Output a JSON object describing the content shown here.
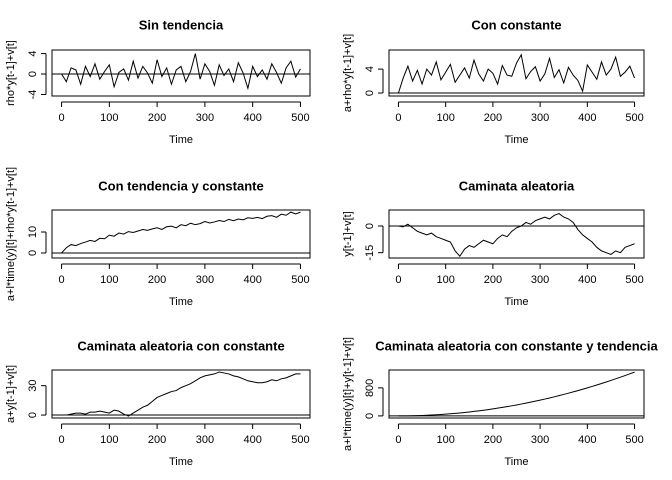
{
  "chart_data": [
    {
      "type": "line",
      "title": "Sin tendencia",
      "xlabel": "Time",
      "ylabel": "rho*y[t-1]+v[t]",
      "color": "#000000",
      "hline": 0,
      "xlim": [
        -20,
        520
      ],
      "ylim": [
        -4.3,
        4.7
      ],
      "xticks": [
        0,
        100,
        200,
        300,
        400,
        500
      ],
      "yticks": [
        -4,
        0,
        4
      ],
      "x": [
        0,
        10,
        20,
        30,
        40,
        50,
        60,
        70,
        80,
        90,
        100,
        110,
        120,
        130,
        140,
        150,
        160,
        170,
        180,
        190,
        200,
        210,
        220,
        230,
        240,
        250,
        260,
        270,
        280,
        290,
        300,
        310,
        320,
        330,
        340,
        350,
        360,
        370,
        380,
        390,
        400,
        410,
        420,
        430,
        440,
        450,
        460,
        470,
        480,
        490,
        500
      ],
      "values": [
        0,
        -1.5,
        1.2,
        0.8,
        -2,
        1.5,
        -0.5,
        2,
        -1,
        0.5,
        1.8,
        -2.5,
        0.3,
        1,
        -1.2,
        2.5,
        -0.8,
        1.5,
        0.2,
        -1.8,
        2.8,
        -0.5,
        1.2,
        -2,
        0.8,
        1.5,
        -1.5,
        0.5,
        4,
        -1,
        2,
        0.5,
        -2.2,
        1.8,
        -0.3,
        1,
        -1.5,
        2.2,
        0.2,
        -2.8,
        1.5,
        -0.5,
        0.8,
        -1,
        2,
        0.3,
        -1.8,
        1.2,
        2.5,
        -0.6,
        1
      ]
    },
    {
      "type": "line",
      "title": "Con constante",
      "xlabel": "Time",
      "ylabel": "a+rho*y[t-1]+v[t]",
      "color": "#000000",
      "hline": 0,
      "xlim": [
        -20,
        520
      ],
      "ylim": [
        -0.5,
        7.2
      ],
      "xticks": [
        0,
        100,
        200,
        300,
        400,
        500
      ],
      "yticks": [
        0,
        4
      ],
      "x": [
        0,
        10,
        20,
        30,
        40,
        50,
        60,
        70,
        80,
        90,
        100,
        110,
        120,
        130,
        140,
        150,
        160,
        170,
        180,
        190,
        200,
        210,
        220,
        230,
        240,
        250,
        260,
        270,
        280,
        290,
        300,
        310,
        320,
        330,
        340,
        350,
        360,
        370,
        380,
        390,
        400,
        410,
        420,
        430,
        440,
        450,
        460,
        470,
        480,
        490,
        500
      ],
      "values": [
        0,
        2.5,
        4.5,
        2,
        3.8,
        1.5,
        4,
        3,
        5.2,
        2.2,
        3.5,
        4.8,
        1.8,
        3,
        4.2,
        2.5,
        5.5,
        3.2,
        2,
        4,
        3.3,
        1.5,
        4.6,
        3,
        2.8,
        5,
        6.4,
        2.4,
        3.6,
        4.4,
        2,
        3.2,
        5.8,
        2.6,
        3.9,
        1.7,
        4.3,
        3,
        2.1,
        0.3,
        4.7,
        3.5,
        2.3,
        5.2,
        3,
        4,
        6,
        2.8,
        3.5,
        4.5,
        2.5
      ]
    },
    {
      "type": "line",
      "title": "Con tendencia y constante",
      "xlabel": "Time",
      "ylabel": "a+l*time(y)[t]+rho*y[t-1]+v[t]",
      "color": "#000000",
      "hline": 0,
      "xlim": [
        -20,
        520
      ],
      "ylim": [
        -2.4,
        20.5
      ],
      "xticks": [
        0,
        100,
        200,
        300,
        400,
        500
      ],
      "yticks": [
        0,
        10
      ],
      "x": [
        0,
        10,
        20,
        30,
        40,
        50,
        60,
        70,
        80,
        90,
        100,
        110,
        120,
        130,
        140,
        150,
        160,
        170,
        180,
        190,
        200,
        210,
        220,
        230,
        240,
        250,
        260,
        270,
        280,
        290,
        300,
        310,
        320,
        330,
        340,
        350,
        360,
        370,
        380,
        390,
        400,
        410,
        420,
        430,
        440,
        450,
        460,
        470,
        480,
        490,
        500
      ],
      "values": [
        0,
        2.5,
        4,
        3.5,
        4.5,
        5.2,
        6,
        5.5,
        7,
        6.8,
        8.5,
        8,
        9.5,
        9,
        10.2,
        9.8,
        10.5,
        11.2,
        10.8,
        11.5,
        12,
        11.2,
        12.5,
        12.8,
        12,
        13.5,
        13,
        14.2,
        13.5,
        14,
        15,
        14.3,
        14.8,
        15.5,
        15,
        16,
        15.4,
        16.2,
        15.8,
        16.8,
        16.5,
        17,
        16.4,
        17.5,
        17.8,
        17,
        18.5,
        18,
        19.5,
        18.6,
        19.5
      ]
    },
    {
      "type": "line",
      "title": "Caminata aleatoria",
      "xlabel": "Time",
      "ylabel": "y[t-1]+v[t]",
      "color": "#000000",
      "hline": 0,
      "xlim": [
        -20,
        520
      ],
      "ylim": [
        -18,
        9
      ],
      "xticks": [
        0,
        100,
        200,
        300,
        400,
        500
      ],
      "yticks": [
        -15,
        0
      ],
      "x": [
        0,
        10,
        20,
        30,
        40,
        50,
        60,
        70,
        80,
        90,
        100,
        110,
        120,
        130,
        140,
        150,
        160,
        170,
        180,
        190,
        200,
        210,
        220,
        230,
        240,
        250,
        260,
        270,
        280,
        290,
        300,
        310,
        320,
        330,
        340,
        350,
        360,
        370,
        380,
        390,
        400,
        410,
        420,
        430,
        440,
        450,
        460,
        470,
        480,
        490,
        500
      ],
      "values": [
        0,
        -0.5,
        1,
        -1,
        -3,
        -4,
        -5,
        -4,
        -6,
        -7,
        -8,
        -9,
        -14,
        -17,
        -13,
        -11,
        -12,
        -10,
        -8,
        -9,
        -10,
        -7,
        -5,
        -6,
        -3,
        -1,
        0,
        2,
        1,
        3,
        4,
        5,
        4,
        6,
        7,
        5,
        4,
        2,
        -2,
        -5,
        -7,
        -9,
        -12,
        -14,
        -15,
        -16,
        -14,
        -15,
        -12,
        -11,
        -10
      ]
    },
    {
      "type": "line",
      "title": "Caminata aleatoria con constante",
      "xlabel": "Time",
      "ylabel": "a+y[t-1]+v[t]",
      "color": "#000000",
      "hline": 0,
      "xlim": [
        -20,
        520
      ],
      "ylim": [
        -3,
        46
      ],
      "xticks": [
        0,
        100,
        200,
        300,
        400,
        500
      ],
      "yticks": [
        0,
        30
      ],
      "x": [
        0,
        10,
        20,
        30,
        40,
        50,
        60,
        70,
        80,
        90,
        100,
        110,
        120,
        130,
        140,
        150,
        160,
        170,
        180,
        190,
        200,
        210,
        220,
        230,
        240,
        250,
        260,
        270,
        280,
        290,
        300,
        310,
        320,
        330,
        340,
        350,
        360,
        370,
        380,
        390,
        400,
        410,
        420,
        430,
        440,
        450,
        460,
        470,
        480,
        490,
        500
      ],
      "values": [
        0,
        0,
        1,
        2,
        2,
        1,
        3,
        3,
        4,
        3,
        2,
        5,
        4,
        1,
        -1,
        2,
        5,
        8,
        10,
        14,
        18,
        20,
        22,
        24,
        25,
        28,
        30,
        32,
        35,
        38,
        40,
        41,
        42,
        44,
        43,
        42,
        40,
        39,
        37,
        35,
        34,
        33,
        33,
        34,
        36,
        35,
        37,
        38,
        40,
        42,
        42
      ]
    },
    {
      "type": "line",
      "title": "Caminata aleatoria con constante y tendencia",
      "xlabel": "Time",
      "ylabel": "a+l*time(y)[t]+y[t-1]+v[t]",
      "color": "#000000",
      "hline": 0,
      "xlim": [
        -20,
        520
      ],
      "ylim": [
        -60,
        1310
      ],
      "xticks": [
        0,
        100,
        200,
        300,
        400,
        500
      ],
      "yticks": [
        0,
        800
      ],
      "x": [
        0,
        10,
        20,
        30,
        40,
        50,
        60,
        70,
        80,
        90,
        100,
        110,
        120,
        130,
        140,
        150,
        160,
        170,
        180,
        190,
        200,
        210,
        220,
        230,
        240,
        250,
        260,
        270,
        280,
        290,
        300,
        310,
        320,
        330,
        340,
        350,
        360,
        370,
        380,
        390,
        400,
        410,
        420,
        430,
        440,
        450,
        460,
        470,
        480,
        490,
        500
      ],
      "values": [
        0,
        0.5,
        2,
        4.5,
        8,
        12.5,
        18,
        24.5,
        32,
        40.5,
        50,
        60.5,
        72,
        84.5,
        98,
        112.5,
        128,
        144.5,
        162,
        180.5,
        200,
        220.5,
        242,
        264.5,
        288,
        312.5,
        338,
        364.5,
        392,
        420.5,
        450,
        480.5,
        512,
        544.5,
        578,
        612.5,
        648,
        684.5,
        722,
        760.5,
        800,
        840.5,
        882,
        924.5,
        968,
        1012.5,
        1058,
        1104.5,
        1152,
        1200.5,
        1250
      ]
    }
  ]
}
